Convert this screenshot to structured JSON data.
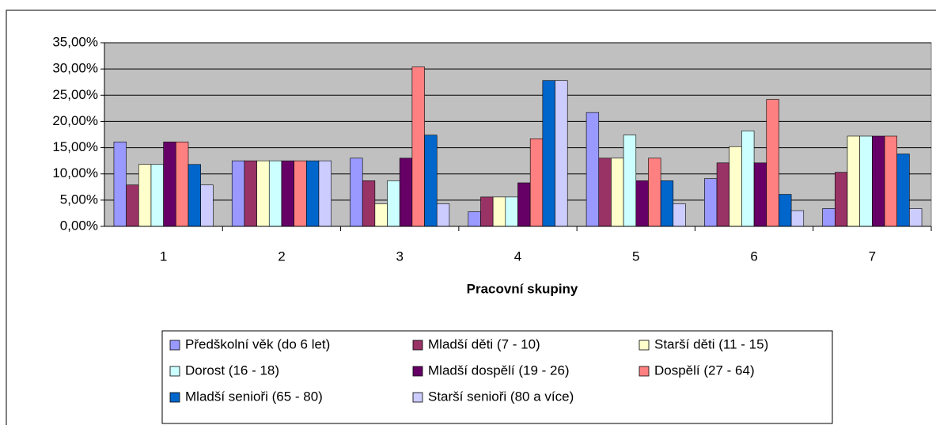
{
  "chart_data": {
    "type": "bar",
    "x_label": "Pracovní skupiny",
    "categories": [
      "1",
      "2",
      "3",
      "4",
      "5",
      "6",
      "7"
    ],
    "series": [
      {
        "name": "Předškolní věk (do 6 let)",
        "color": "#9999FF",
        "values": [
          16.1,
          12.5,
          13.0,
          2.8,
          21.7,
          9.1,
          3.4
        ]
      },
      {
        "name": "Mladší děti (7 - 10)",
        "color": "#993366",
        "values": [
          7.9,
          12.5,
          8.7,
          5.6,
          13.0,
          12.1,
          10.3
        ]
      },
      {
        "name": "Starší děti (11 - 15)",
        "color": "#FFFFCC",
        "values": [
          11.8,
          12.5,
          4.3,
          5.6,
          13.0,
          15.2,
          17.2
        ]
      },
      {
        "name": "Dorost (16 - 18)",
        "color": "#CCFFFF",
        "values": [
          11.8,
          12.5,
          8.7,
          5.6,
          17.4,
          18.2,
          17.2
        ]
      },
      {
        "name": "Mladší dospělí (19 - 26)",
        "color": "#660066",
        "values": [
          16.1,
          12.5,
          13.0,
          8.3,
          8.7,
          12.1,
          17.2
        ]
      },
      {
        "name": "Dospělí (27 - 64)",
        "color": "#FF8080",
        "values": [
          16.1,
          12.5,
          30.4,
          16.7,
          13.0,
          24.2,
          17.2
        ]
      },
      {
        "name": "Mladší senioři (65 - 80)",
        "color": "#0066CC",
        "values": [
          11.8,
          12.5,
          17.4,
          27.8,
          8.7,
          6.1,
          13.8
        ]
      },
      {
        "name": "Starší senioři (80 a více)",
        "color": "#CCCCFF",
        "values": [
          7.9,
          12.5,
          4.3,
          27.8,
          4.3,
          3.0,
          3.4
        ]
      }
    ],
    "ylim": [
      0,
      35
    ],
    "yticks": [
      {
        "value": 0,
        "label": "0,00%"
      },
      {
        "value": 5,
        "label": "5,00%"
      },
      {
        "value": 10,
        "label": "10,00%"
      },
      {
        "value": 15,
        "label": "15,00%"
      },
      {
        "value": 20,
        "label": "20,00%"
      },
      {
        "value": 25,
        "label": "25,00%"
      },
      {
        "value": 30,
        "label": "30,00%"
      },
      {
        "value": 35,
        "label": "35,00%"
      }
    ],
    "grid": true,
    "plot_background": "#C0C0C0",
    "legend": "bottom"
  }
}
